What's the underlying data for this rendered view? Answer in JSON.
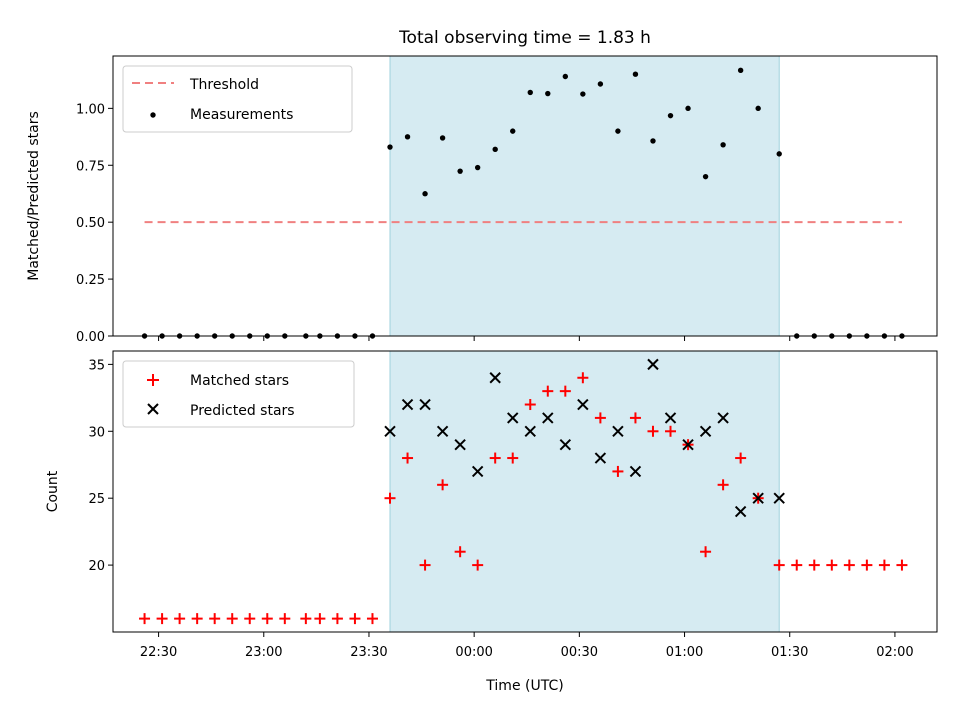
{
  "chart_data": [
    {
      "panel": "top",
      "type": "scatter",
      "title": "Total observing time = 1.83 h",
      "xlabel": "",
      "ylabel": "Matched/Predicted stars",
      "ylim": [
        0,
        1.23
      ],
      "yticks": [
        "0.00",
        "0.25",
        "0.50",
        "0.75",
        "1.00"
      ],
      "yticks_values": [
        0,
        0.25,
        0.5,
        0.75,
        1.0
      ],
      "grid": false,
      "legend_position": "top-left",
      "shaded_region": {
        "x_start": "23:36",
        "x_end": "01:27",
        "color": "#add8e6"
      },
      "series": [
        {
          "name": "Threshold",
          "kind": "dashed-line",
          "color": "#f08080",
          "x": [
            "22:26",
            "02:02"
          ],
          "y": [
            0.5,
            0.5
          ]
        },
        {
          "name": "Measurements",
          "kind": "points",
          "color": "#000000",
          "x": [
            "22:26",
            "22:31",
            "22:36",
            "22:41",
            "22:46",
            "22:51",
            "22:56",
            "23:01",
            "23:06",
            "23:12",
            "23:16",
            "23:21",
            "23:26",
            "23:31",
            "23:36",
            "23:41",
            "23:46",
            "23:51",
            "23:56",
            "00:01",
            "00:06",
            "00:11",
            "00:16",
            "00:21",
            "00:26",
            "00:31",
            "00:36",
            "00:41",
            "00:46",
            "00:51",
            "00:56",
            "01:01",
            "01:06",
            "01:11",
            "01:16",
            "01:21",
            "01:27",
            "01:32",
            "01:37",
            "01:42",
            "01:47",
            "01:52",
            "01:57",
            "02:02"
          ],
          "y": [
            0,
            0,
            0,
            0,
            0,
            0,
            0,
            0,
            0,
            0,
            0,
            0,
            0,
            0,
            0.83,
            0.875,
            0.625,
            0.87,
            0.724,
            0.74,
            0.82,
            0.9,
            1.07,
            1.065,
            1.14,
            1.063,
            1.107,
            0.9,
            1.15,
            0.857,
            0.968,
            1.0,
            0.7,
            0.84,
            1.167,
            1.0,
            0.8,
            0,
            0,
            0,
            0,
            0,
            0,
            0
          ]
        }
      ]
    },
    {
      "panel": "bottom",
      "type": "scatter",
      "title": "",
      "xlabel": "Time (UTC)",
      "ylabel": "Count",
      "ylim": [
        15,
        36
      ],
      "yticks": [
        "20",
        "25",
        "30",
        "35"
      ],
      "yticks_values": [
        20,
        25,
        30,
        35
      ],
      "xticks": [
        "22:30",
        "23:00",
        "23:30",
        "00:00",
        "00:30",
        "01:00",
        "01:30",
        "02:00"
      ],
      "xlim": [
        "22:17",
        "02:12"
      ],
      "grid": false,
      "legend_position": "top-left",
      "shaded_region": {
        "x_start": "23:36",
        "x_end": "01:27",
        "color": "#add8e6"
      },
      "series": [
        {
          "name": "Matched stars",
          "marker": "+",
          "color": "#ff0000",
          "x": [
            "22:26",
            "22:31",
            "22:36",
            "22:41",
            "22:46",
            "22:51",
            "22:56",
            "23:01",
            "23:06",
            "23:12",
            "23:16",
            "23:21",
            "23:26",
            "23:31",
            "23:36",
            "23:41",
            "23:46",
            "23:51",
            "23:56",
            "00:01",
            "00:06",
            "00:11",
            "00:16",
            "00:21",
            "00:26",
            "00:31",
            "00:36",
            "00:41",
            "00:46",
            "00:51",
            "00:56",
            "01:01",
            "01:06",
            "01:11",
            "01:16",
            "01:21",
            "01:27",
            "01:32",
            "01:37",
            "01:42",
            "01:47",
            "01:52",
            "01:57",
            "02:02"
          ],
          "y": [
            16,
            16,
            16,
            16,
            16,
            16,
            16,
            16,
            16,
            16,
            16,
            16,
            16,
            16,
            25,
            28,
            20,
            26,
            21,
            20,
            28,
            28,
            32,
            33,
            33,
            34,
            31,
            27,
            31,
            30,
            30,
            29,
            21,
            26,
            28,
            25,
            20,
            20,
            20,
            20,
            20,
            20,
            20,
            20
          ]
        },
        {
          "name": "Predicted stars",
          "marker": "x",
          "color": "#000000",
          "x": [
            "23:36",
            "23:41",
            "23:46",
            "23:51",
            "23:56",
            "00:01",
            "00:06",
            "00:11",
            "00:16",
            "00:21",
            "00:26",
            "00:31",
            "00:36",
            "00:41",
            "00:46",
            "00:51",
            "00:56",
            "01:01",
            "01:06",
            "01:11",
            "01:16",
            "01:21",
            "01:27"
          ],
          "y": [
            30,
            32,
            32,
            30,
            29,
            27,
            34,
            31,
            30,
            31,
            29,
            32,
            28,
            30,
            27,
            35,
            31,
            29,
            30,
            31,
            24,
            25,
            25
          ]
        }
      ]
    }
  ]
}
